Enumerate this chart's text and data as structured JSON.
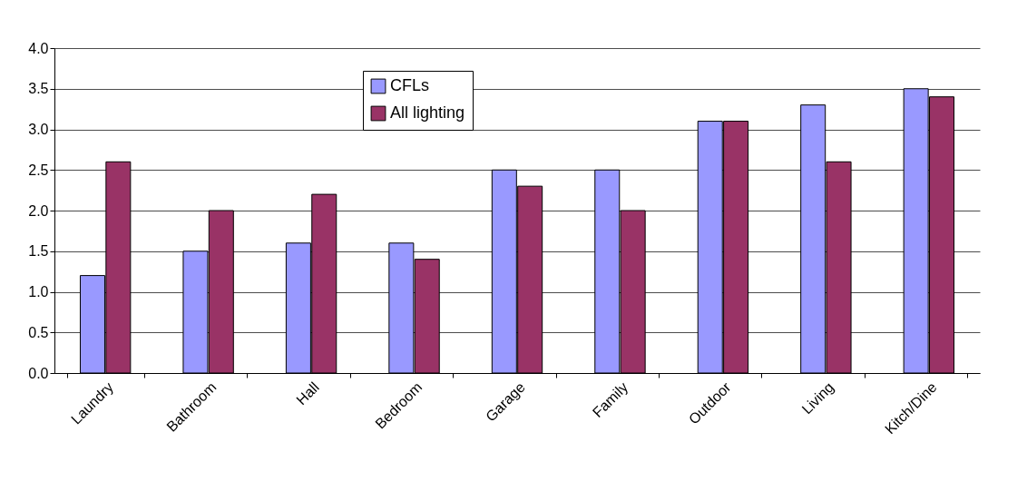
{
  "chart_data": {
    "type": "bar",
    "categories": [
      "Laundry",
      "Bathroom",
      "Hall",
      "Bedroom",
      "Garage",
      "Family",
      "Outdoor",
      "Living",
      "Kitch/Dine"
    ],
    "series": [
      {
        "name": "CFLs",
        "color": "#9999ff",
        "values": [
          1.2,
          1.5,
          1.6,
          1.6,
          2.5,
          2.5,
          3.1,
          3.3,
          3.5
        ]
      },
      {
        "name": "All lighting",
        "color": "#993366",
        "values": [
          2.6,
          2.0,
          2.2,
          1.4,
          2.3,
          2.0,
          3.1,
          2.6,
          3.4
        ]
      }
    ],
    "ylim": [
      0,
      4
    ],
    "yticks": [
      {
        "value": 0,
        "label": "0.0"
      },
      {
        "value": 0.5,
        "label": "0.5"
      },
      {
        "value": 1,
        "label": "1.0"
      },
      {
        "value": 1.5,
        "label": "1.5"
      },
      {
        "value": 2,
        "label": "2.0"
      },
      {
        "value": 2.5,
        "label": "2.5"
      },
      {
        "value": 3,
        "label": "3.0"
      },
      {
        "value": 3.5,
        "label": "3.5"
      },
      {
        "value": 4,
        "label": "4.0"
      }
    ],
    "grid": "y",
    "legend": "top"
  }
}
